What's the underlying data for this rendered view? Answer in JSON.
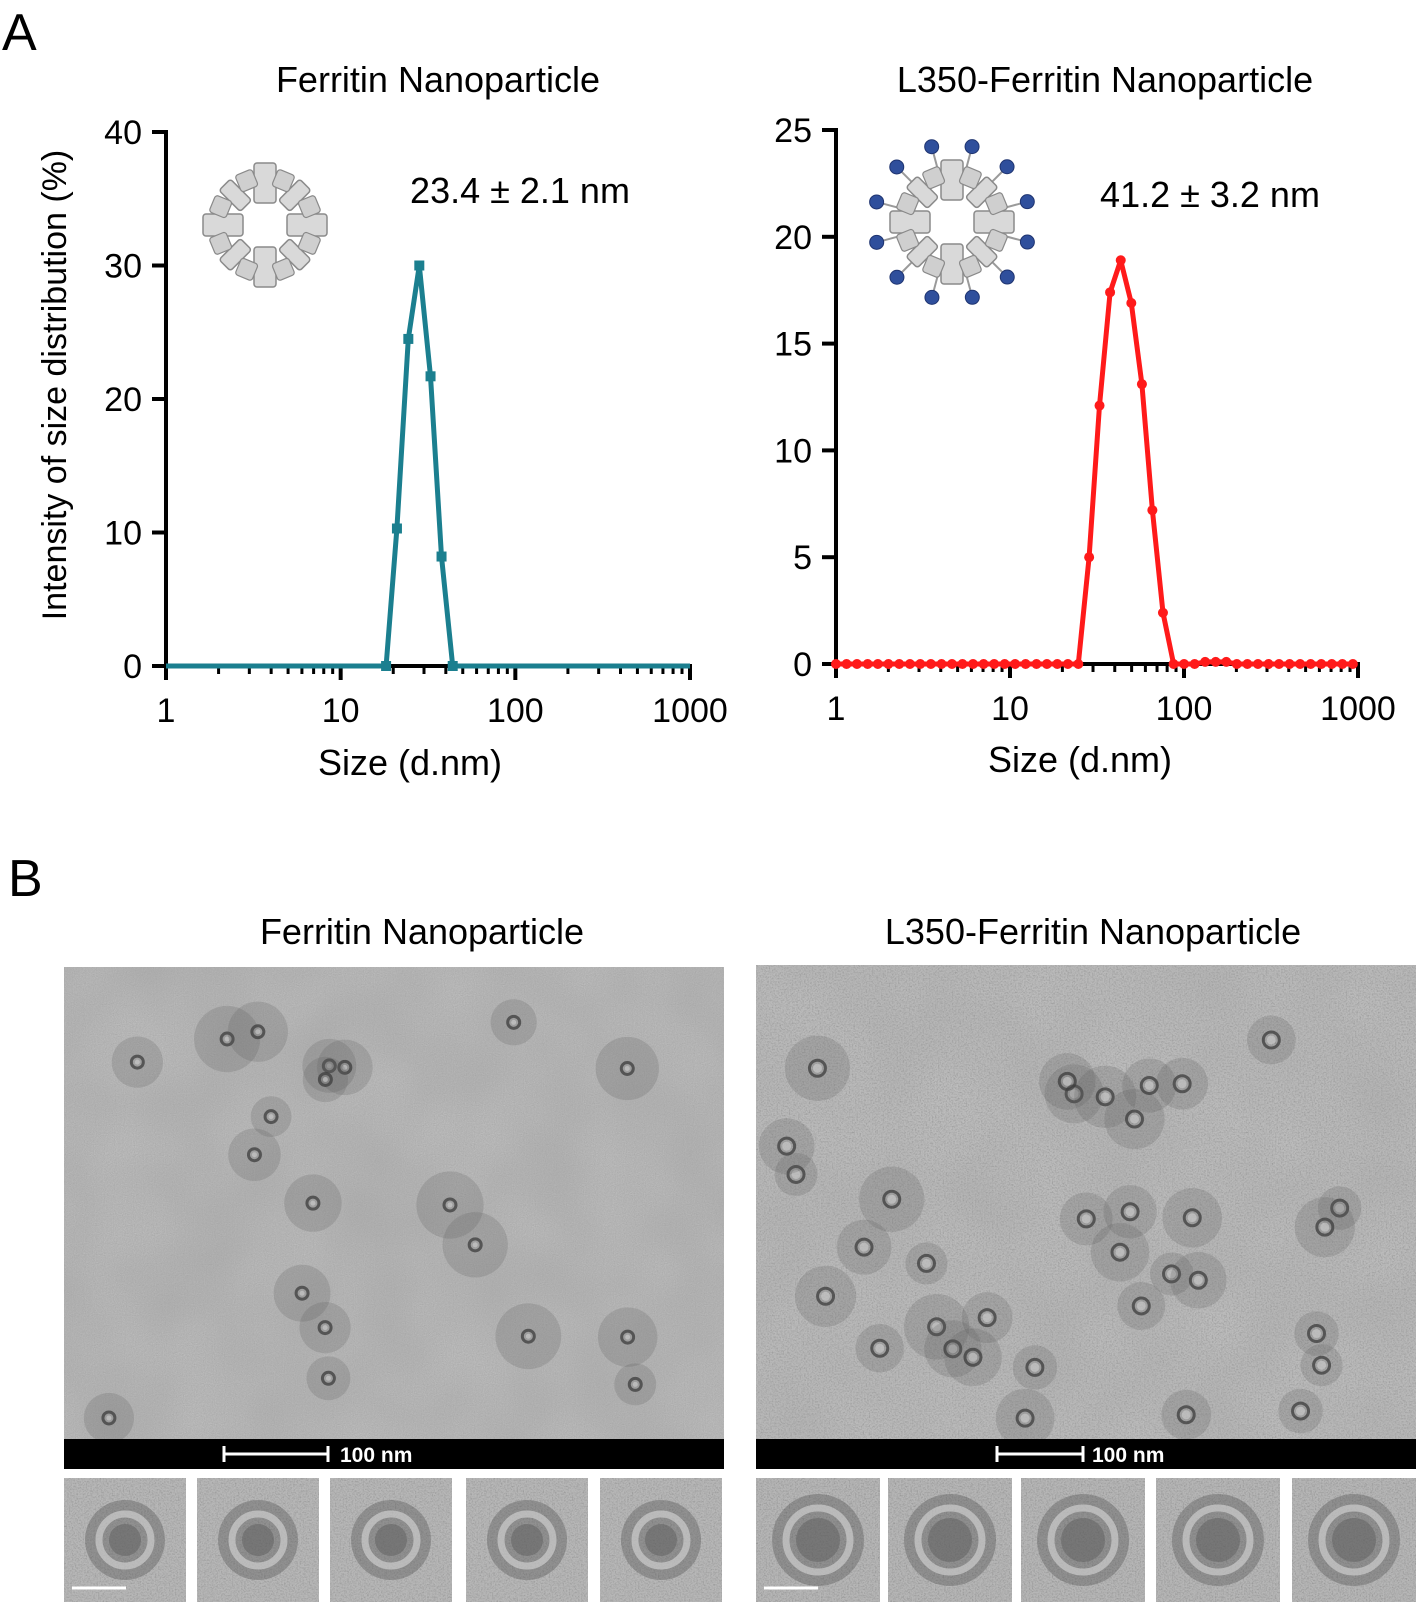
{
  "figure": {
    "panel_a_letter": "A",
    "panel_b_letter": "B"
  },
  "colors": {
    "ferritin_series": "#1b7f8f",
    "l350_series": "#ff1a1a",
    "axis": "#000000",
    "particle_fill": "#d9d9d9",
    "particle_stroke": "#8a8a8a",
    "antigen_dot": "#2f4f9c"
  },
  "icons": {
    "ferritin_schematic": "ferritin-cage-icon",
    "l350_schematic": "ferritin-cage-with-antigens-icon"
  },
  "chart_data": [
    {
      "type": "line",
      "title": "Ferritin Nanoparticle",
      "xlabel": "Size (d.nm)",
      "ylabel": "Intensity of size distribution (%)",
      "x_scale": "log",
      "xlim": [
        1,
        1000
      ],
      "ylim": [
        0,
        40
      ],
      "xticks": [
        "1",
        "10",
        "100",
        "1000"
      ],
      "yticks": [
        "0",
        "10",
        "20",
        "30",
        "40"
      ],
      "annotation": "23.4 ± 2.1 nm",
      "marker": "square",
      "series": [
        {
          "x": [
            1,
            18.2,
            21.0,
            24.4,
            28.2,
            32.7,
            37.8,
            43.8,
            1000
          ],
          "y": [
            0,
            0,
            10.3,
            24.5,
            30.0,
            21.7,
            8.2,
            0,
            0
          ]
        }
      ]
    },
    {
      "type": "line",
      "title": "L350-Ferritin Nanoparticle",
      "xlabel": "Size (d.nm)",
      "ylabel": "",
      "x_scale": "log",
      "xlim": [
        1,
        1000
      ],
      "ylim": [
        0,
        25
      ],
      "xticks": [
        "1",
        "10",
        "100",
        "1000"
      ],
      "yticks": [
        "0",
        "5",
        "10",
        "15",
        "20",
        "25"
      ],
      "annotation": "41.2 ± 3.2 nm",
      "marker": "circle",
      "series": [
        {
          "x": [
            1,
            1.15,
            1.32,
            1.52,
            1.74,
            2.0,
            2.31,
            2.66,
            3.05,
            3.51,
            4.04,
            4.64,
            5.33,
            6.13,
            7.05,
            8.11,
            9.32,
            10.7,
            12.3,
            14.2,
            16.3,
            18.7,
            21.5,
            24.7,
            28.5,
            32.7,
            37.6,
            43.3,
            49.8,
            57.3,
            65.8,
            75.7,
            87.1,
            100.1,
            115.1,
            132.3,
            152.1,
            175.0,
            201.2,
            231.3,
            266.0,
            305.9,
            351.7,
            404.4,
            465.0,
            534.7,
            614.8,
            706.9,
            812.9,
            934.6
          ],
          "y": [
            0,
            0,
            0,
            0,
            0,
            0,
            0,
            0,
            0,
            0,
            0,
            0,
            0,
            0,
            0,
            0,
            0,
            0,
            0,
            0,
            0,
            0,
            0,
            0,
            5.0,
            12.1,
            17.4,
            18.9,
            16.9,
            13.1,
            7.2,
            2.4,
            0,
            0,
            0,
            0.1,
            0.1,
            0.1,
            0,
            0,
            0,
            0,
            0,
            0,
            0,
            0,
            0,
            0,
            0,
            0
          ]
        }
      ]
    }
  ],
  "tem": {
    "left_title": "Ferritin Nanoparticle",
    "right_title": "L350-Ferritin Nanoparticle",
    "left_scale_label": "100 nm",
    "right_scale_label": "100 nm"
  }
}
